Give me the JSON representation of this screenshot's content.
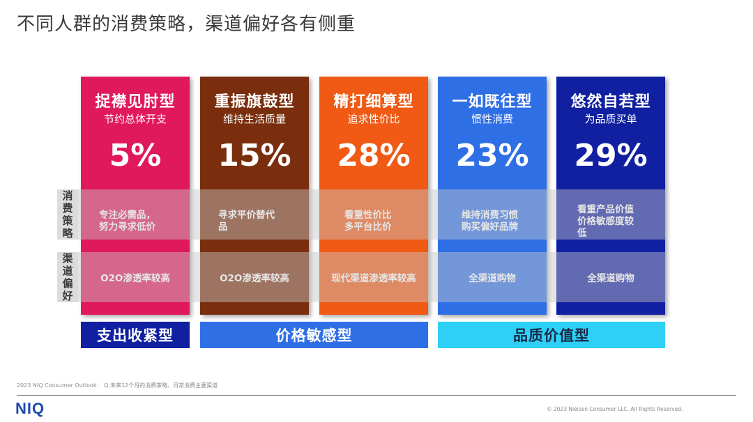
{
  "title": "不同人群的消费策略，渠道偏好各有侧重",
  "row_labels": {
    "strategy": [
      "消",
      "费",
      "策",
      "略"
    ],
    "channel": [
      "渠",
      "道",
      "偏",
      "好"
    ]
  },
  "segments": [
    {
      "name": "捉襟见肘型",
      "subtitle": "节约总体开支",
      "percent": "5%",
      "strategy_l1": "专注必需品，",
      "strategy_l2": "努力寻求低价",
      "channel": "O2O渗透率较高",
      "color": "#e0195c"
    },
    {
      "name": "重振旗鼓型",
      "subtitle": "维持生活质量",
      "percent": "15%",
      "strategy_l1": "寻求平价替代",
      "strategy_l2": "品",
      "channel": "O2O渗透率较高",
      "color": "#7a2e0e"
    },
    {
      "name": "精打细算型",
      "subtitle": "追求性价比",
      "percent": "28%",
      "strategy_l1": "看重性价比",
      "strategy_l2": "多平台比价",
      "channel": "现代渠道渗透率较高",
      "color": "#f05a14"
    },
    {
      "name": "一如既往型",
      "subtitle": "惯性消费",
      "percent": "23%",
      "strategy_l1": "维持消费习惯",
      "strategy_l2": "购买偏好品牌",
      "channel": "全渠道购物",
      "color": "#2f6fe6"
    },
    {
      "name": "悠然自若型",
      "subtitle": "为品质买单",
      "percent": "29%",
      "strategy_l1": "看重产品价值",
      "strategy_l2": "价格敏感度较",
      "strategy_l3": "低",
      "channel": "全渠道购物",
      "color": "#1020a0"
    }
  ],
  "groups": [
    {
      "label": "支出收紧型",
      "bg": "#1020a0",
      "fg": "#ffffff"
    },
    {
      "label": "价格敏感型",
      "bg": "#2f6fe6",
      "fg": "#ffffff"
    },
    {
      "label": "品质价值型",
      "bg": "#2ed0f5",
      "fg": "#1a2a4a"
    }
  ],
  "footer": {
    "source": "2023 NIQ Consumer Outlook： Q.未来12个月的消费策略、日常消费主要渠道",
    "logo": "NIQ",
    "copyright": "© 2023 Nielsen Consumer LLC. All Rights Reserved."
  }
}
